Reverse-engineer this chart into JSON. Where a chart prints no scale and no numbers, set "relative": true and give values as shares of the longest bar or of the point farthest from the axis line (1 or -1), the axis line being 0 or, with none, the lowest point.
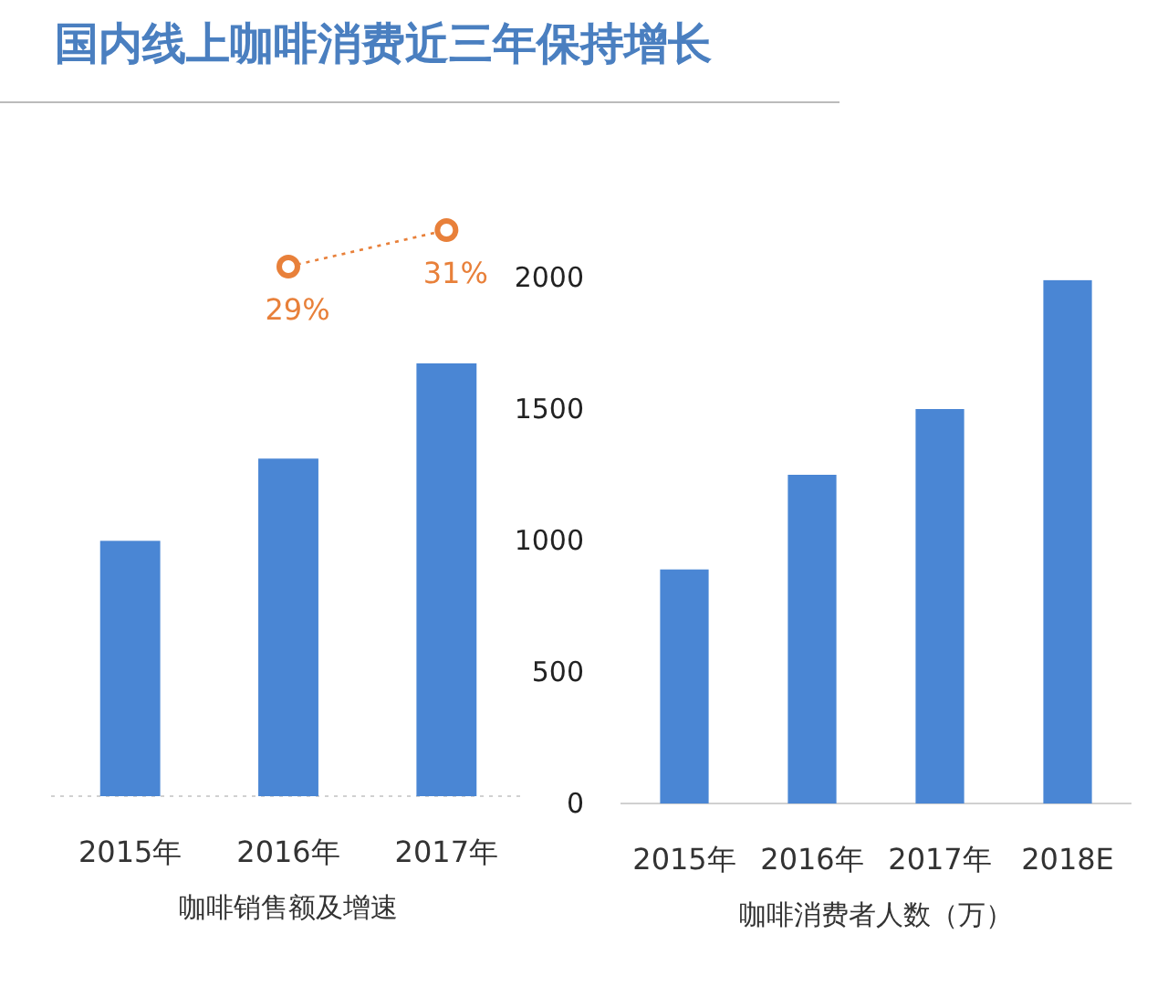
{
  "chart_data": [
    {
      "type": "bar",
      "xlabel": "咖啡销售额及增速",
      "relative": true,
      "categories": [
        "2015年",
        "2016年",
        "2017年"
      ],
      "series": [
        {
          "color": "#4a86d4",
          "values": [
            0.59,
            0.78,
            1
          ]
        }
      ]
    },
    {
      "type": "line",
      "title": "国内线上咖啡消费近三年保持增长",
      "categories": [
        null,
        null,
        null
      ],
      "tick_labels": false,
      "marker": "circle",
      "line_style": "dotted",
      "series": [
        {
          "color": "#e8803a",
          "values": [
            null,
            29,
            31
          ],
          "value_labels": [
            null,
            "29%",
            "31%"
          ]
        }
      ]
    },
    {
      "type": "bar",
      "xlabel": "咖啡消费者人数（万）",
      "categories": [
        "2015年",
        "2016年",
        "2017年",
        "2018E"
      ],
      "ylim": [
        0,
        2000
      ],
      "yticks": [
        0,
        500,
        1000,
        1500,
        2000
      ],
      "series": [
        {
          "color": "#4a86d4",
          "values": [
            890,
            1250,
            1500,
            1990
          ]
        }
      ]
    }
  ]
}
